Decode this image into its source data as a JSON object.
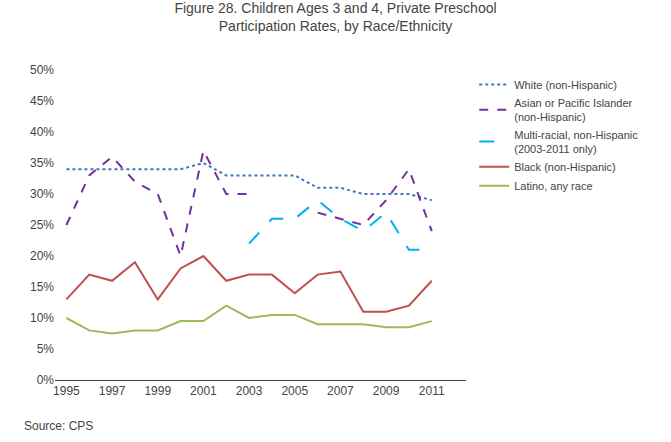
{
  "chart_data": {
    "type": "line",
    "title": "Figure 28. Children Ages 3 and 4, Private Preschool\nParticipation Rates, by Race/Ethnicity",
    "annotations": [
      "Source: CPS"
    ],
    "x": [
      1995,
      1996,
      1997,
      1998,
      1999,
      2000,
      2001,
      2002,
      2003,
      2004,
      2005,
      2006,
      2007,
      2008,
      2009,
      2010,
      2011
    ],
    "series": [
      {
        "name": "White (non-Hispanic)",
        "color": "#4472C4",
        "line_style": "dotted",
        "values": [
          0.34,
          0.34,
          0.34,
          0.34,
          0.34,
          0.34,
          0.35,
          0.33,
          0.33,
          0.33,
          0.33,
          0.31,
          0.31,
          0.3,
          0.3,
          0.3,
          0.29
        ]
      },
      {
        "name": "Asian or Pacific Islander\n(non-Hispanic)",
        "color": "#7030A0",
        "line_style": "dashed",
        "values": [
          0.25,
          0.33,
          0.36,
          0.32,
          0.3,
          0.2,
          0.37,
          0.3,
          0.3,
          null,
          null,
          0.27,
          0.26,
          0.25,
          0.29,
          0.34,
          0.24
        ]
      },
      {
        "name": "Multi-racial, non-Hispanic\n(2003-2011 only)",
        "color": "#00B0F0",
        "line_style": "longdash",
        "values": [
          null,
          null,
          null,
          null,
          null,
          null,
          null,
          null,
          0.22,
          0.26,
          0.26,
          0.29,
          0.26,
          0.24,
          0.27,
          0.21,
          0.21
        ]
      },
      {
        "name": "Black (non-Hispanic)",
        "color": "#C0504D",
        "line_style": "solid",
        "values": [
          0.13,
          0.17,
          0.16,
          0.19,
          0.13,
          0.18,
          0.2,
          0.16,
          0.17,
          0.17,
          0.14,
          0.17,
          0.175,
          0.11,
          0.11,
          0.12,
          0.16
        ]
      },
      {
        "name": "Latino, any race",
        "color": "#9BBB59",
        "line_style": "solid",
        "values": [
          0.1,
          0.08,
          0.075,
          0.08,
          0.08,
          0.095,
          0.095,
          0.12,
          0.1,
          0.105,
          0.105,
          0.09,
          0.09,
          0.09,
          0.085,
          0.085,
          0.095
        ]
      }
    ],
    "xlim": [
      1994.5,
      2012.5
    ],
    "xticks": [
      1995,
      1997,
      1999,
      2001,
      2003,
      2005,
      2007,
      2009,
      2011
    ],
    "ylim": [
      0,
      0.5
    ],
    "yticks": [
      {
        "value": 0.0,
        "label": "0%"
      },
      {
        "value": 0.05,
        "label": "5%"
      },
      {
        "value": 0.1,
        "label": "10%"
      },
      {
        "value": 0.15,
        "label": "15%"
      },
      {
        "value": 0.2,
        "label": "20%"
      },
      {
        "value": 0.25,
        "label": "25%"
      },
      {
        "value": 0.3,
        "label": "30%"
      },
      {
        "value": 0.35,
        "label": "35%"
      },
      {
        "value": 0.4,
        "label": "40%"
      },
      {
        "value": 0.45,
        "label": "45%"
      },
      {
        "value": 0.5,
        "label": "50%"
      }
    ],
    "grid": false,
    "legend": "upper right"
  }
}
